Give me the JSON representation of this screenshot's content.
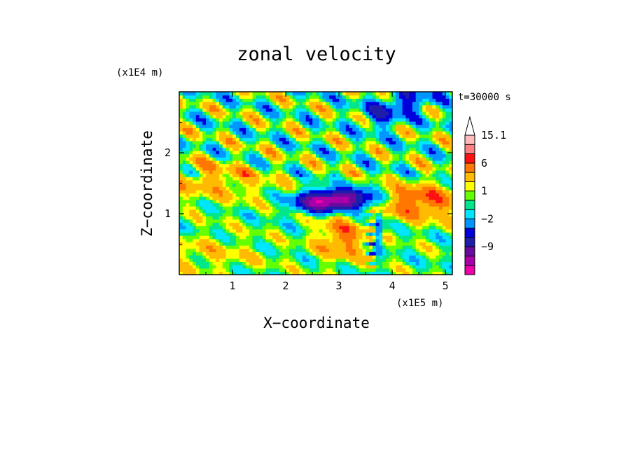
{
  "chart_data": {
    "type": "heatmap",
    "title": "zonal velocity",
    "xlabel": "X−coordinate",
    "ylabel": "Z−coordinate",
    "x_scale_label": "(x1E5 m)",
    "y_scale_label": "(x1E4 m)",
    "time_label": "t=30000 s",
    "xlim": [
      0,
      5.13
    ],
    "ylim": [
      0,
      3.0
    ],
    "x_ticks": [
      "1",
      "2",
      "3",
      "4",
      "5"
    ],
    "x_tick_values": [
      1,
      2,
      3,
      4,
      5
    ],
    "y_ticks": [
      "1",
      "2"
    ],
    "y_tick_values": [
      1,
      2
    ],
    "colorbar": {
      "tick_labels": [
        "15.1",
        "6",
        "1",
        "−2",
        "−9"
      ],
      "tick_values": [
        15.1,
        6,
        1,
        -2,
        -9
      ],
      "levels": [
        -15,
        -12,
        -9,
        -6,
        -4,
        -2,
        -1,
        0,
        1,
        2,
        4,
        6,
        9,
        12,
        15.1
      ],
      "colors": [
        "#ee00aa",
        "#aa00aa",
        "#6a0a9e",
        "#1e1eaa",
        "#0000dd",
        "#0096ff",
        "#00e6ff",
        "#00e68c",
        "#64ff00",
        "#ffff00",
        "#ffbb00",
        "#ff7700",
        "#ff1111",
        "#ff8080",
        "#ffbbbb"
      ],
      "extend": "max"
    },
    "field": {
      "grid_nx": 82,
      "grid_nz": 56,
      "features": [
        {
          "name": "negative shear layer core",
          "x_center": 3.0,
          "z_center": 1.25,
          "value": -12
        },
        {
          "name": "positive jet east of ridge",
          "x_center": 4.5,
          "z_center": 1.2,
          "value": 6
        },
        {
          "name": "positive lobe lower west",
          "x_center": 3.0,
          "z_center": 0.6,
          "value": 5
        },
        {
          "name": "upper negative patch",
          "x_center": 4.3,
          "z_center": 2.8,
          "value": -5
        }
      ]
    },
    "grid": false
  }
}
